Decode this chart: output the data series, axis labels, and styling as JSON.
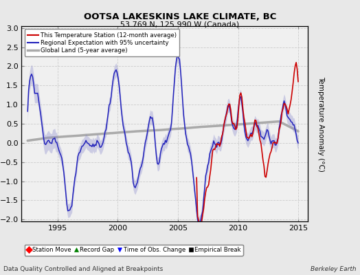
{
  "title": "OOTSA LAKESKINS LAKE CLIMATE, BC",
  "subtitle": "53.769 N, 125.990 W (Canada)",
  "ylabel": "Temperature Anomaly (°C)",
  "footer_left": "Data Quality Controlled and Aligned at Breakpoints",
  "footer_right": "Berkeley Earth",
  "xlim": [
    1992.0,
    2015.8
  ],
  "ylim": [
    -2.05,
    3.05
  ],
  "yticks": [
    -2,
    -1.5,
    -1,
    -0.5,
    0,
    0.5,
    1,
    1.5,
    2,
    2.5,
    3
  ],
  "xticks": [
    1995,
    2000,
    2005,
    2010,
    2015
  ],
  "bg_color": "#e8e8e8",
  "plot_bg_color": "#f0f0f0",
  "station_color": "#cc0000",
  "regional_color": "#2222bb",
  "regional_fill_color": "#8888cc",
  "global_color": "#aaaaaa",
  "legend_items": [
    {
      "label": "This Temperature Station (12-month average)",
      "color": "#cc0000",
      "lw": 1.5
    },
    {
      "label": "Regional Expectation with 95% uncertainty",
      "color": "#2222bb",
      "lw": 1.5
    },
    {
      "label": "Global Land (5-year average)",
      "color": "#aaaaaa",
      "lw": 2.5
    }
  ],
  "marker_legend": [
    {
      "marker": "D",
      "color": "red",
      "label": "Station Move"
    },
    {
      "marker": "^",
      "color": "green",
      "label": "Record Gap"
    },
    {
      "marker": "v",
      "color": "blue",
      "label": "Time of Obs. Change"
    },
    {
      "marker": "s",
      "color": "black",
      "label": "Empirical Break"
    }
  ]
}
